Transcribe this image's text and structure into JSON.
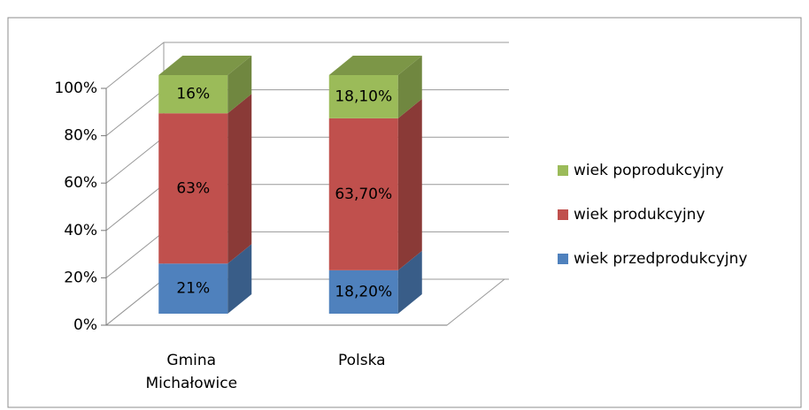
{
  "chart_data": {
    "type": "bar3d_stacked",
    "categories": [
      "Gmina Michałowice",
      "Polska"
    ],
    "series": [
      {
        "name": "wiek przedprodukcyjny",
        "color": "#4f81bd",
        "values": [
          21,
          18.2
        ],
        "value_labels": [
          "21%",
          "18,20%"
        ]
      },
      {
        "name": "wiek produkcyjny",
        "color": "#c0504d",
        "values": [
          63,
          63.7
        ],
        "value_labels": [
          "63%",
          "63,70%"
        ]
      },
      {
        "name": "wiek poprodukcyjny",
        "color": "#9bbb59",
        "values": [
          16,
          18.1
        ],
        "value_labels": [
          "16%",
          "18,10%"
        ]
      }
    ],
    "ylim": [
      0,
      100
    ],
    "yticks": [
      {
        "value": 0,
        "label": "0%"
      },
      {
        "value": 20,
        "label": "20%"
      },
      {
        "value": 40,
        "label": "40%"
      },
      {
        "value": 60,
        "label": "60%"
      },
      {
        "value": 80,
        "label": "80%"
      },
      {
        "value": 100,
        "label": "100%"
      }
    ],
    "grid": true,
    "legend": "right"
  }
}
